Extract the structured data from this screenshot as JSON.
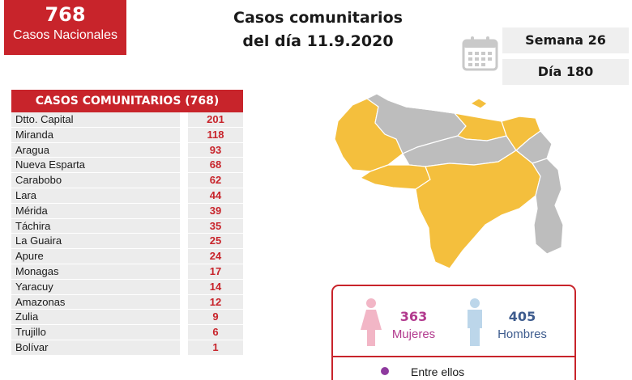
{
  "national": {
    "count": "768",
    "label": "Casos Nacionales"
  },
  "headline": {
    "line1": "Casos comunitarios",
    "line2": "del día 11.9.2020"
  },
  "week": "Semana 26",
  "day": "Día 180",
  "table": {
    "title": "CASOS COMUNITARIOS (768)",
    "rows": [
      {
        "name": "Dtto. Capital",
        "value": "201"
      },
      {
        "name": "Miranda",
        "value": "118"
      },
      {
        "name": "Aragua",
        "value": "93"
      },
      {
        "name": "Nueva Esparta",
        "value": "68"
      },
      {
        "name": "Carabobo",
        "value": "62"
      },
      {
        "name": "Lara",
        "value": "44"
      },
      {
        "name": "Mérida",
        "value": "39"
      },
      {
        "name": "Táchira",
        "value": "35"
      },
      {
        "name": "La Guaira",
        "value": "25"
      },
      {
        "name": "Apure",
        "value": "24"
      },
      {
        "name": "Monagas",
        "value": "17"
      },
      {
        "name": "Yaracuy",
        "value": "14"
      },
      {
        "name": "Amazonas",
        "value": "12"
      },
      {
        "name": "Zulia",
        "value": "9"
      },
      {
        "name": "Trujillo",
        "value": "6"
      },
      {
        "name": "Bolívar",
        "value": "1"
      }
    ]
  },
  "gender": {
    "women_count": "363",
    "women_label": "Mujeres",
    "men_count": "405",
    "men_label": "Hombres",
    "between_label": "Entre ellos"
  },
  "colors": {
    "accent_red": "#c8242b",
    "map_affected": "#f4bf3d",
    "map_unaffected": "#bdbdbd",
    "women": "#b23a8e",
    "men": "#3e5c8e"
  },
  "icons": [
    "calendar-icon",
    "female-icon",
    "male-icon",
    "person-icon"
  ]
}
